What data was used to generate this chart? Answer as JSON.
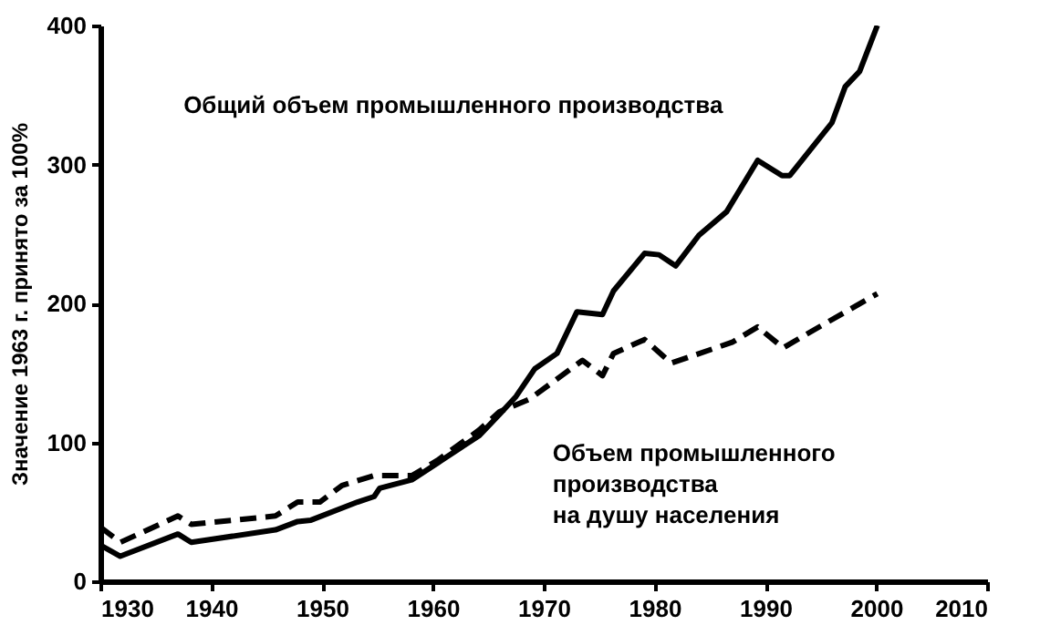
{
  "chart_data": {
    "type": "line",
    "ylabel": "Значение 1963 г. принято за 100%",
    "xlim": [
      1930,
      2010
    ],
    "ylim": [
      0,
      400
    ],
    "xticks": [
      1930,
      1940,
      1950,
      1960,
      1970,
      1980,
      1990,
      2000,
      2010
    ],
    "yticks": [
      0,
      100,
      200,
      300,
      400
    ],
    "series": [
      {
        "name": "Общий объем промышленного производства",
        "color": "#000000",
        "line_style": "solid",
        "x": [
          1930,
          1931.8,
          1937,
          1938.2,
          1945.8,
          1947.8,
          1949,
          1953.2,
          1954.7,
          1955.2,
          1958.1,
          1960.4,
          1964.2,
          1966,
          1967.5,
          1969.2,
          1971.2,
          1973,
          1975.3,
          1976.3,
          1979.1,
          1980.4,
          1981.9,
          1984,
          1986.5,
          1989.3,
          1991.5,
          1992.2,
          1994.2,
          1996,
          1997.2,
          1998.5,
          2000.1
        ],
        "values": [
          26,
          18,
          34,
          28,
          37,
          43,
          44,
          57,
          61,
          67,
          73,
          85,
          105,
          120,
          133,
          153,
          164,
          194,
          192,
          209,
          236,
          235,
          227,
          249,
          266,
          303,
          292,
          292,
          312,
          330,
          356,
          367,
          400
        ]
      },
      {
        "name": "Объем промышленного\nпроизводства\nна душу населения",
        "color": "#000000",
        "line_style": "dashed",
        "x": [
          1930,
          1931.8,
          1937,
          1938.2,
          1945.8,
          1947.8,
          1949.8,
          1951.8,
          1954.7,
          1958.1,
          1960.4,
          1964.2,
          1966,
          1968.7,
          1973.5,
          1975.3,
          1976.3,
          1979.1,
          1981.5,
          1987,
          1989.3,
          1991.6,
          1994.4,
          2000.1
        ],
        "values": [
          39,
          28,
          47,
          41,
          47,
          57,
          57,
          69,
          76,
          76,
          87,
          109,
          122,
          131,
          159,
          148,
          164,
          174,
          157,
          172,
          183,
          168,
          181,
          207
        ]
      }
    ]
  }
}
